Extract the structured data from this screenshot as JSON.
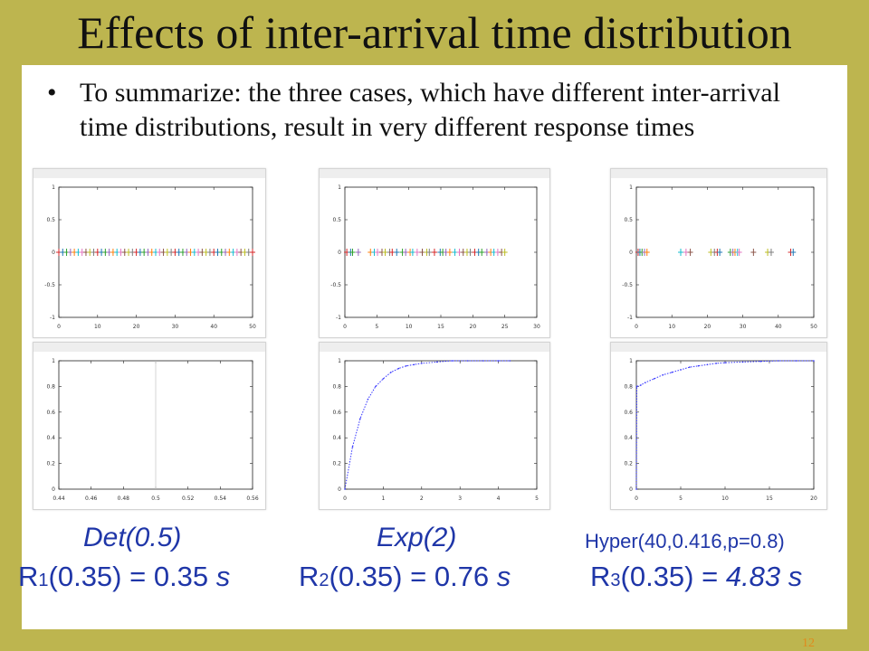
{
  "slide": {
    "title": "Effects of inter-arrival time distribution",
    "bullet": "To summarize: the three cases, which have different inter-arrival time distributions, result in very different response times",
    "page_number": "12"
  },
  "colors": {
    "background": "#bdb54f",
    "panel": "#ffffff",
    "caption": "#1f36a8",
    "cdf_line": "#3333ff",
    "page_number": "#e08a1c"
  },
  "captions": [
    {
      "dist": "Det(0.5)",
      "resp_prefix": "R",
      "resp_sub": "1",
      "resp_mid": "(0.35) = 0.35 ",
      "resp_unit": "s"
    },
    {
      "dist": "Exp(2)",
      "resp_prefix": "R",
      "resp_sub": "2",
      "resp_mid": "(0.35) = 0.76 ",
      "resp_unit": "s"
    },
    {
      "dist": "Hyper(40,0.416,p=0.8)",
      "resp_prefix": "R",
      "resp_sub": "3",
      "resp_mid": "(0.35) = ",
      "resp_unit": "4.83 s"
    }
  ],
  "chart_data": [
    {
      "type": "scatter",
      "xlim": [
        0,
        50
      ],
      "ylim": [
        -1,
        1
      ],
      "x_ticks": [
        0,
        10,
        20,
        30,
        40,
        50
      ],
      "y_ticks": [
        -1,
        -0.5,
        0,
        0.5,
        1
      ],
      "x": [
        0,
        1,
        2,
        3,
        4,
        5,
        6,
        7,
        8,
        9,
        10,
        11,
        12,
        13,
        14,
        15,
        16,
        17,
        18,
        19,
        20,
        21,
        22,
        23,
        24,
        25,
        26,
        27,
        28,
        29,
        30,
        31,
        32,
        33,
        34,
        35,
        36,
        37,
        38,
        39,
        40,
        41,
        42,
        43,
        44,
        45,
        46,
        47,
        48,
        49,
        50
      ],
      "y_value": 0,
      "marker": "+"
    },
    {
      "type": "scatter",
      "xlim": [
        0,
        30
      ],
      "ylim": [
        -1,
        1
      ],
      "x_ticks": [
        0,
        5,
        10,
        15,
        20,
        25,
        30
      ],
      "y_ticks": [
        -1,
        -0.5,
        0,
        0.5,
        1
      ],
      "x": [
        0.3,
        0.9,
        1.2,
        2.1,
        4.0,
        4.6,
        5.1,
        5.8,
        6.3,
        7.0,
        7.4,
        8.1,
        9.0,
        9.5,
        10.2,
        10.6,
        11.3,
        12.1,
        12.8,
        13.2,
        14.0,
        14.9,
        15.3,
        15.8,
        16.4,
        17.2,
        17.9,
        18.5,
        19.1,
        19.6,
        20.3,
        20.9,
        21.4,
        22.2,
        22.8,
        23.3,
        23.9,
        24.5,
        25.0
      ],
      "y_value": 0,
      "marker": "+"
    },
    {
      "type": "scatter",
      "xlim": [
        0,
        50
      ],
      "ylim": [
        -1,
        1
      ],
      "x_ticks": [
        0,
        10,
        20,
        30,
        40,
        50
      ],
      "y_ticks": [
        -1,
        -0.5,
        0,
        0.5,
        1
      ],
      "x": [
        0.5,
        1.0,
        1.6,
        2.3,
        3.0,
        12.5,
        14.0,
        15.2,
        21.0,
        22.0,
        22.8,
        23.5,
        26.5,
        27.2,
        27.8,
        28.5,
        29.0,
        33.0,
        37.0,
        38.0,
        43.5,
        44.2
      ],
      "y_value": 0,
      "marker": "+"
    },
    {
      "type": "line",
      "xlim": [
        0.44,
        0.56
      ],
      "ylim": [
        0,
        1
      ],
      "x_ticks": [
        0.44,
        0.46,
        0.48,
        0.5,
        0.52,
        0.54,
        0.56
      ],
      "y_ticks": [
        0,
        0.2,
        0.4,
        0.6,
        0.8,
        1
      ],
      "x": [
        0.5,
        0.5
      ],
      "y": [
        0,
        1
      ],
      "line_style": "step at 0.5"
    },
    {
      "type": "line",
      "xlim": [
        0,
        5
      ],
      "ylim": [
        0,
        1
      ],
      "x_ticks": [
        0,
        1,
        2,
        3,
        4,
        5
      ],
      "y_ticks": [
        0,
        0.2,
        0.4,
        0.6,
        0.8,
        1
      ],
      "x": [
        0,
        0.2,
        0.4,
        0.6,
        0.8,
        1.0,
        1.2,
        1.4,
        1.6,
        1.8,
        2.0,
        2.4,
        2.8,
        3.2,
        3.6,
        4.0,
        4.3
      ],
      "y": [
        0,
        0.33,
        0.55,
        0.7,
        0.8,
        0.86,
        0.91,
        0.94,
        0.96,
        0.97,
        0.98,
        0.99,
        1.0,
        1.0,
        1.0,
        1.0,
        1.0
      ],
      "line_style": "dotted"
    },
    {
      "type": "line",
      "xlim": [
        0,
        20
      ],
      "ylim": [
        0,
        1
      ],
      "x_ticks": [
        0,
        5,
        10,
        15,
        20
      ],
      "y_ticks": [
        0,
        0.2,
        0.4,
        0.6,
        0.8,
        1
      ],
      "x": [
        0,
        0.05,
        0.5,
        1,
        2,
        3,
        4,
        5,
        6,
        7,
        8,
        9,
        10,
        12,
        14,
        16,
        18,
        20
      ],
      "y": [
        0,
        0.8,
        0.81,
        0.83,
        0.86,
        0.89,
        0.91,
        0.93,
        0.95,
        0.96,
        0.97,
        0.98,
        0.985,
        0.99,
        0.995,
        1.0,
        1.0,
        1.0
      ],
      "line_style": "dotted"
    }
  ]
}
